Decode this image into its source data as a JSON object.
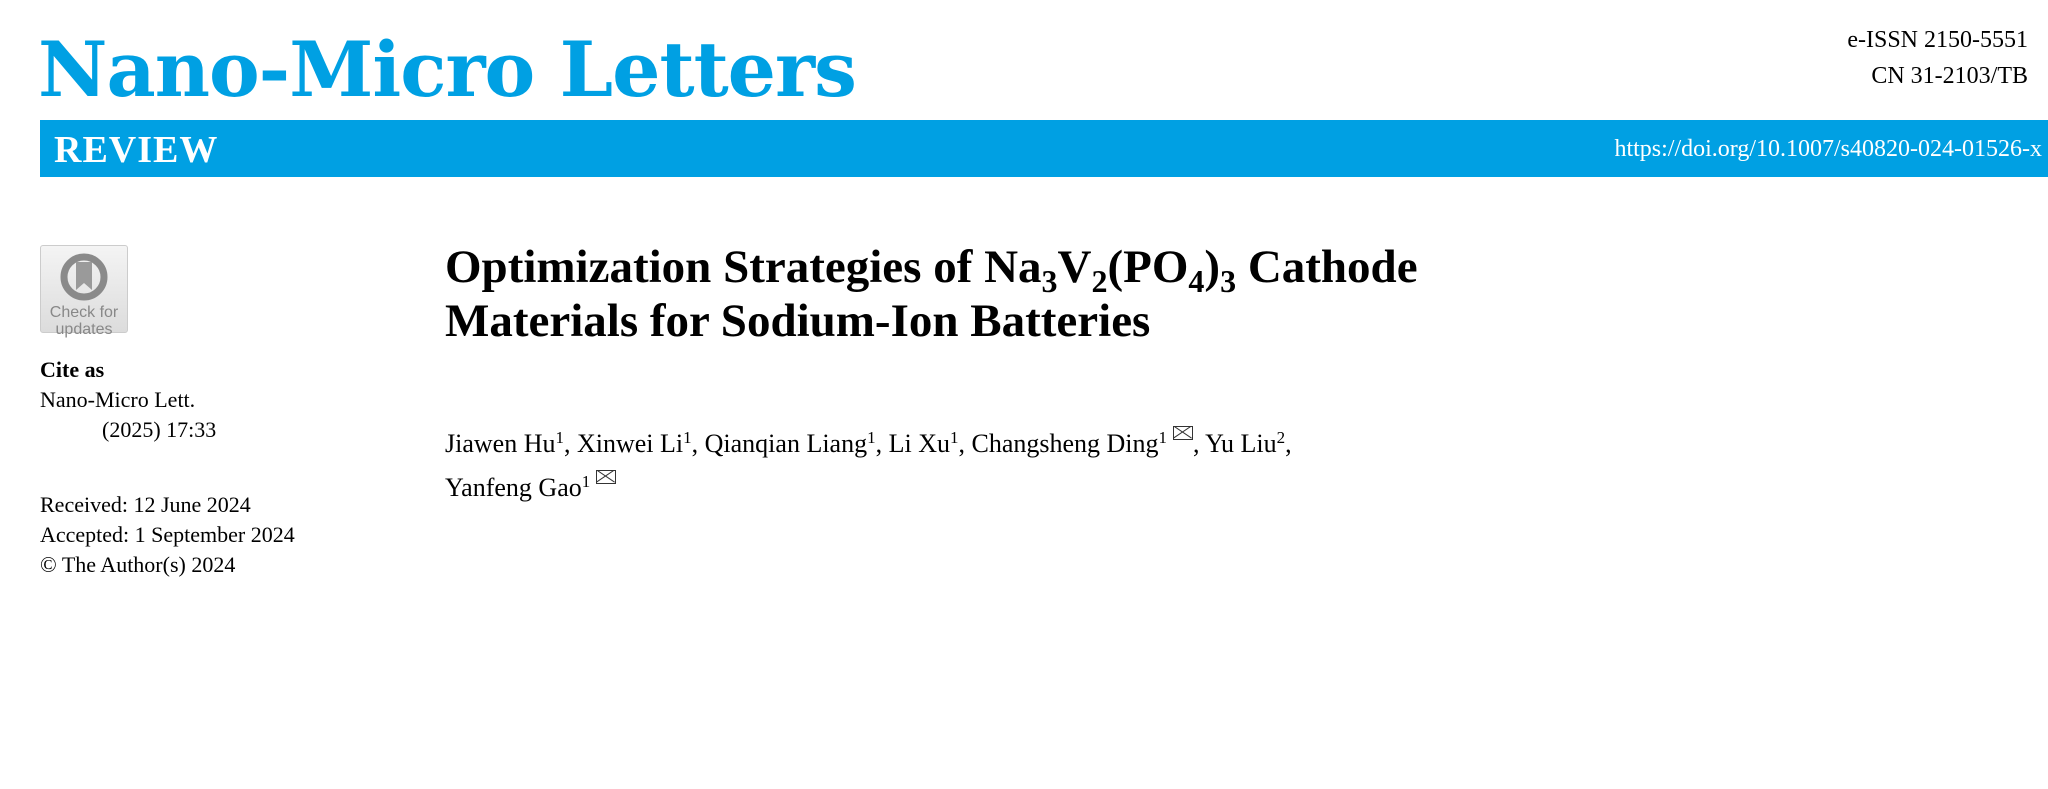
{
  "journal": {
    "name": "Nano-Micro Letters",
    "eissn": "e-ISSN 2150-5551",
    "cn": "CN 31-2103/TB",
    "article_type": "REVIEW",
    "doi": "https://doi.org/10.1007/s40820-024-01526-x",
    "brand_color": "#00a0e3"
  },
  "badge": {
    "line1": "Check for",
    "line2": "updates"
  },
  "cite": {
    "heading": "Cite as",
    "journal": "Nano-Micro Lett.",
    "ref": "(2025) 17:33"
  },
  "dates": {
    "received": "Received: 12 June 2024",
    "accepted": "Accepted: 1 September 2024",
    "copyright": "© The Author(s) 2024"
  },
  "article": {
    "title_parts": [
      "Optimization Strategies of Na",
      "3",
      "V",
      "2",
      "(PO",
      "4",
      ")",
      "3",
      " Cathode",
      "Materials for Sodium-Ion Batteries"
    ],
    "authors": [
      {
        "name": "Jiawen Hu",
        "aff": "1",
        "corresponding": false
      },
      {
        "name": "Xinwei Li",
        "aff": "1",
        "corresponding": false
      },
      {
        "name": "Qianqian Liang",
        "aff": "1",
        "corresponding": false
      },
      {
        "name": "Li Xu",
        "aff": "1",
        "corresponding": false
      },
      {
        "name": "Changsheng Ding",
        "aff": "1",
        "corresponding": true
      },
      {
        "name": "Yu Liu",
        "aff": "2",
        "corresponding": false
      },
      {
        "name": "Yanfeng Gao",
        "aff": "1",
        "corresponding": true
      }
    ]
  }
}
